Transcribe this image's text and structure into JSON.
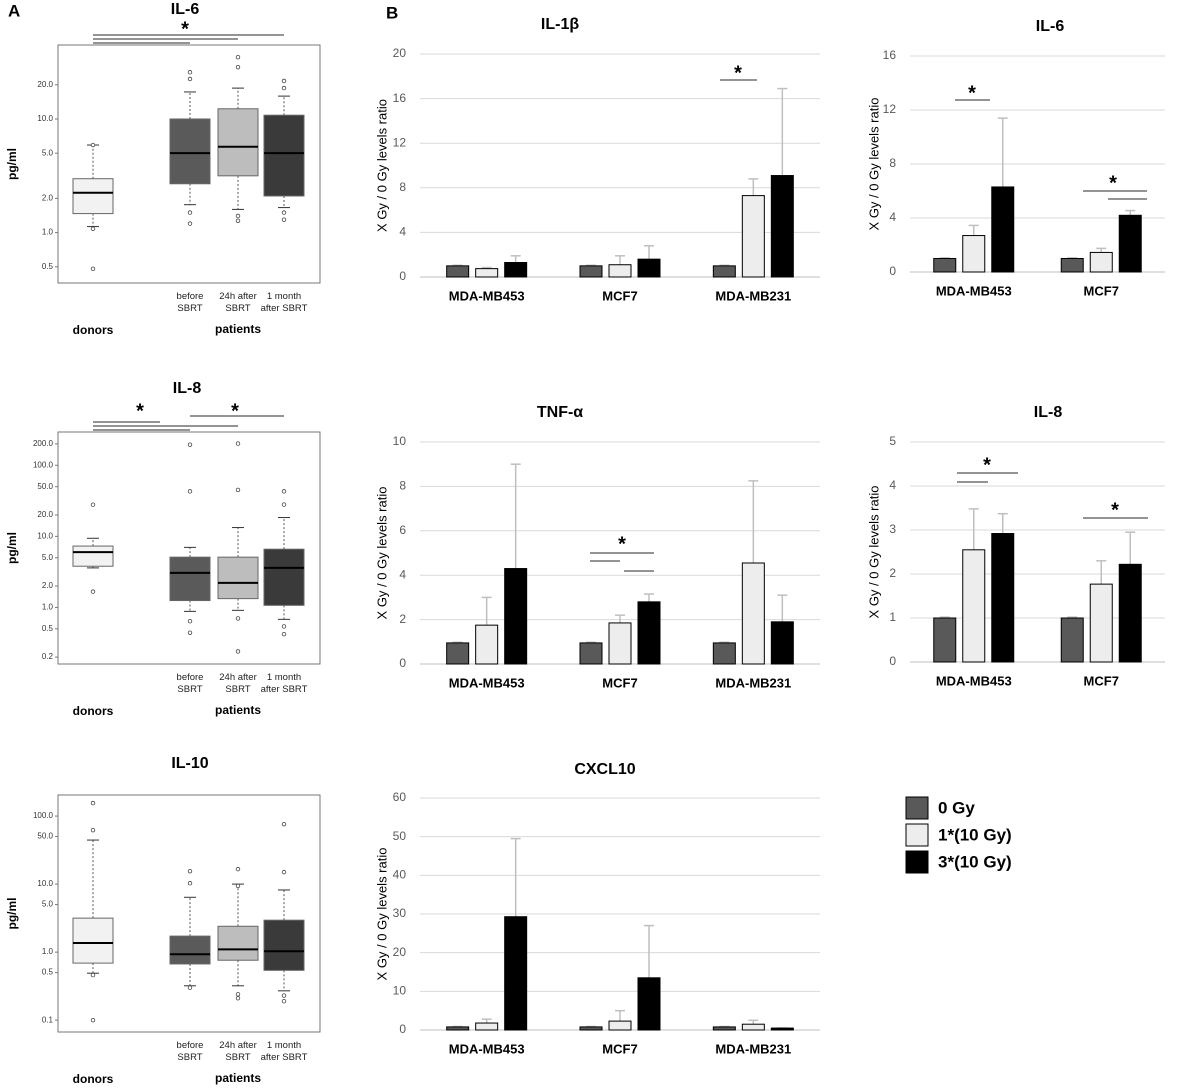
{
  "panel_labels": [
    "A",
    "B"
  ],
  "legend": {
    "entries": [
      {
        "name": "0 Gy",
        "color": "#595959"
      },
      {
        "name": "1*(10 Gy)",
        "color": "#ededed"
      },
      {
        "name": "3*(10 Gy)",
        "color": "#000000"
      }
    ]
  },
  "chart_data": [
    {
      "type": "box",
      "title": "IL-6",
      "ylabel": "pg/ml",
      "log_scale": true,
      "categories": [
        null,
        "before SBRT",
        "24h after SBRT",
        "1 month after SBRT"
      ],
      "groups": [
        "donors",
        "patients"
      ],
      "ylim": [
        0.36,
        44.8
      ],
      "yticks": [
        0.5,
        {
          "value": 1,
          "label": "1.0"
        },
        {
          "value": 2,
          "label": "2.0"
        },
        {
          "value": 5,
          "label": "5.0"
        },
        {
          "value": 10,
          "label": "10.0"
        },
        {
          "value": 20,
          "label": "20.0"
        }
      ],
      "annotations": [
        "*"
      ],
      "boxes": [
        {
          "color": "#f2f2f2",
          "whisker_low": 1.13,
          "q1": 1.47,
          "median": 2.24,
          "q3": 2.98,
          "whisker_high": 5.9,
          "outliers": [
            0.48,
            1.08,
            5.9
          ]
        },
        {
          "color": "#5a5a5a",
          "whisker_low": 1.76,
          "q1": 2.69,
          "median": 5.0,
          "q3": 10,
          "whisker_high": 17.3,
          "outliers": [
            25.8,
            22.5,
            1.5,
            1.2
          ]
        },
        {
          "color": "#bdbdbd",
          "whisker_low": 1.6,
          "q1": 3.16,
          "median": 5.7,
          "q3": 12.3,
          "whisker_high": 18.7,
          "outliers": [
            35,
            28.6,
            1.4,
            1.27
          ]
        },
        {
          "color": "#3a3a3a",
          "whisker_low": 1.66,
          "q1": 2.1,
          "median": 5.0,
          "q3": 10.8,
          "whisker_high": 15.9,
          "outliers": [
            21.6,
            18.7,
            1.5,
            1.3
          ]
        }
      ]
    },
    {
      "type": "box",
      "title": "IL-8",
      "ylabel": "pg/ml",
      "log_scale": true,
      "categories": [
        null,
        "before SBRT",
        "24h after SBRT",
        "1 month after SBRT"
      ],
      "groups": [
        "donors",
        "patients"
      ],
      "ylim": [
        0.16,
        294
      ],
      "yticks": [
        0.2,
        0.5,
        {
          "value": 1,
          "label": "1.0"
        },
        {
          "value": 2,
          "label": "2.0"
        },
        {
          "value": 5,
          "label": "5.0"
        },
        {
          "value": 10,
          "label": "10.0"
        },
        {
          "value": 20,
          "label": "20.0"
        },
        {
          "value": 50,
          "label": "50.0"
        },
        {
          "value": 100,
          "label": "100.0"
        },
        {
          "value": 200,
          "label": "200.0"
        }
      ],
      "annotations": [
        "*",
        "*"
      ],
      "boxes": [
        {
          "color": "#f2f2f2",
          "whisker_low": 3.6,
          "q1": 3.8,
          "median": 6.0,
          "q3": 7.3,
          "whisker_high": 9.4,
          "outliers": [
            27.9,
            1.67
          ]
        },
        {
          "color": "#5a5a5a",
          "whisker_low": 0.88,
          "q1": 1.25,
          "median": 3.06,
          "q3": 5.1,
          "whisker_high": 7.0,
          "outliers": [
            195,
            43,
            0.64,
            0.44
          ]
        },
        {
          "color": "#bdbdbd",
          "whisker_low": 0.91,
          "q1": 1.33,
          "median": 2.22,
          "q3": 5.1,
          "whisker_high": 13.3,
          "outliers": [
            202,
            45,
            0.7,
            0.24
          ]
        },
        {
          "color": "#3a3a3a",
          "whisker_low": 0.68,
          "q1": 1.07,
          "median": 3.6,
          "q3": 6.6,
          "whisker_high": 18.4,
          "outliers": [
            43,
            28,
            0.54,
            0.42
          ]
        }
      ]
    },
    {
      "type": "box",
      "title": "IL-10",
      "ylabel": "pg/ml",
      "log_scale": true,
      "categories": [
        null,
        "before SBRT",
        "24h after SBRT",
        "1 month after SBRT"
      ],
      "groups": [
        "donors",
        "patients"
      ],
      "ylim": [
        0.067,
        204
      ],
      "yticks": [
        0.1,
        0.5,
        {
          "value": 1,
          "label": "1.0"
        },
        {
          "value": 5,
          "label": "5.0"
        },
        {
          "value": 10,
          "label": "10.0"
        },
        {
          "value": 50,
          "label": "50.0"
        },
        {
          "value": 100,
          "label": "100.0"
        }
      ],
      "annotations": [],
      "boxes": [
        {
          "color": "#f2f2f2",
          "whisker_low": 0.49,
          "q1": 0.69,
          "median": 1.36,
          "q3": 3.16,
          "whisker_high": 44.4,
          "outliers": [
            155,
            62,
            0.46,
            0.1
          ]
        },
        {
          "color": "#5a5a5a",
          "whisker_low": 0.32,
          "q1": 0.67,
          "median": 0.93,
          "q3": 1.72,
          "whisker_high": 6.4,
          "outliers": [
            15.5,
            10.3,
            0.3
          ]
        },
        {
          "color": "#bdbdbd",
          "whisker_low": 0.32,
          "q1": 0.76,
          "median": 1.1,
          "q3": 2.4,
          "whisker_high": 10,
          "outliers": [
            16.6,
            9.4,
            0.24,
            0.21
          ]
        },
        {
          "color": "#3a3a3a",
          "whisker_low": 0.27,
          "q1": 0.54,
          "median": 1.03,
          "q3": 2.95,
          "whisker_high": 8.2,
          "outliers": [
            76,
            15,
            0.23,
            0.19
          ]
        }
      ]
    },
    {
      "type": "bar",
      "title": "IL-1β",
      "ylabel": "X Gy / 0 Gy levels ratio",
      "grid": true,
      "categories": [
        "MDA-MB453",
        "MCF7",
        "MDA-MB231"
      ],
      "ylim": [
        0,
        20
      ],
      "yticks": [
        0,
        4,
        8,
        12,
        16,
        20
      ],
      "annotations": [
        "*"
      ],
      "series": [
        {
          "values": [
            1,
            1,
            1
          ],
          "errors": [
            0.05,
            0.05,
            0.05
          ]
        },
        {
          "values": [
            0.75,
            1.1,
            7.3
          ],
          "errors": [
            0.1,
            0.8,
            1.5
          ]
        },
        {
          "values": [
            1.3,
            1.6,
            9.1
          ],
          "errors": [
            0.6,
            1.2,
            7.8
          ]
        }
      ]
    },
    {
      "type": "bar",
      "title": "IL-6",
      "ylabel": "X Gy / 0 Gy levels ratio",
      "grid": true,
      "categories": [
        "MDA-MB453",
        "MCF7"
      ],
      "ylim": [
        0,
        16
      ],
      "yticks": [
        0,
        4,
        8,
        12,
        16
      ],
      "annotations": [
        "*",
        "*"
      ],
      "series": [
        {
          "values": [
            1,
            1
          ],
          "errors": [
            0.05,
            0.05
          ]
        },
        {
          "values": [
            2.7,
            1.45
          ],
          "errors": [
            0.75,
            0.3
          ]
        },
        {
          "values": [
            6.3,
            4.2
          ],
          "errors": [
            5.1,
            0.35
          ]
        }
      ]
    },
    {
      "type": "bar",
      "title": "TNF-α",
      "ylabel": "X Gy / 0 Gy levels ratio",
      "grid": true,
      "categories": [
        "MDA-MB453",
        "MCF7",
        "MDA-MB231"
      ],
      "ylim": [
        0,
        10
      ],
      "yticks": [
        0,
        2,
        4,
        6,
        8,
        10
      ],
      "annotations": [
        "*"
      ],
      "series": [
        {
          "values": [
            0.95,
            0.95,
            0.95
          ],
          "errors": [
            0.03,
            0.03,
            0.03
          ]
        },
        {
          "values": [
            1.75,
            1.85,
            4.55
          ],
          "errors": [
            1.25,
            0.35,
            3.7
          ]
        },
        {
          "values": [
            4.3,
            2.8,
            1.9
          ],
          "errors": [
            4.7,
            0.35,
            1.2
          ]
        }
      ]
    },
    {
      "type": "bar",
      "title": "IL-8",
      "ylabel": "X Gy / 0 Gy levels ratio",
      "grid": true,
      "categories": [
        "MDA-MB453",
        "MCF7"
      ],
      "ylim": [
        0,
        5
      ],
      "yticks": [
        0,
        1,
        2,
        3,
        4,
        5
      ],
      "annotations": [
        "*",
        "*"
      ],
      "series": [
        {
          "values": [
            1,
            1
          ],
          "errors": [
            0.02,
            0.02
          ]
        },
        {
          "values": [
            2.55,
            1.77
          ],
          "errors": [
            0.93,
            0.53
          ]
        },
        {
          "values": [
            2.92,
            2.22
          ],
          "errors": [
            0.45,
            0.73
          ]
        }
      ]
    },
    {
      "type": "bar",
      "title": "CXCL10",
      "ylabel": "X Gy / 0 Gy levels ratio",
      "grid": true,
      "categories": [
        "MDA-MB453",
        "MCF7",
        "MDA-MB231"
      ],
      "ylim": [
        0,
        60
      ],
      "yticks": [
        0,
        10,
        20,
        30,
        40,
        50,
        60
      ],
      "annotations": [],
      "series": [
        {
          "values": [
            0.8,
            0.8,
            0.8
          ],
          "errors": [
            0.1,
            0.1,
            0.1
          ]
        },
        {
          "values": [
            1.8,
            2.3,
            1.5
          ],
          "errors": [
            1.0,
            2.7,
            1.0
          ]
        },
        {
          "values": [
            29.3,
            13.5,
            0.5
          ],
          "errors": [
            20.2,
            13.5,
            0
          ]
        }
      ]
    }
  ]
}
